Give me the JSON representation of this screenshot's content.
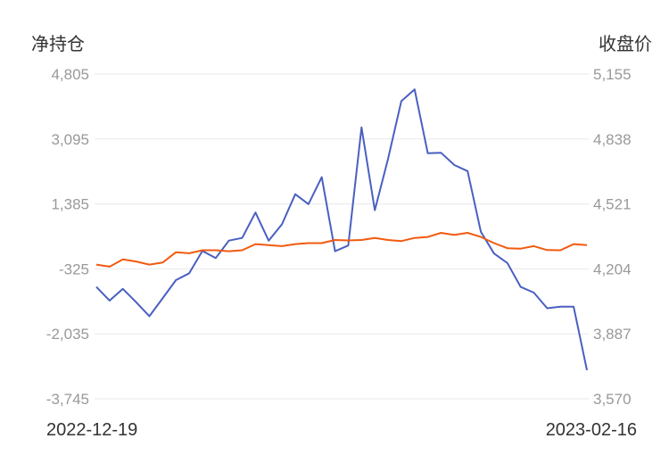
{
  "chart_data": {
    "type": "line",
    "left_axis_title": "净持仓",
    "right_axis_title": "收盘价",
    "left_ticks": [
      "4,805",
      "3,095",
      "1,385",
      "-325",
      "-2,035",
      "-3,745"
    ],
    "right_ticks": [
      "5,155",
      "4,838",
      "4,521",
      "4,204",
      "3,887",
      "3,570"
    ],
    "left_ylim": [
      -3745,
      4805
    ],
    "right_ylim": [
      3570,
      5155
    ],
    "x_start_label": "2022-12-19",
    "x_end_label": "2023-02-16",
    "grid": true,
    "series": [
      {
        "axis": "left",
        "color": "#4a5fc1",
        "values": [
          -800,
          -1160,
          -850,
          -1200,
          -1570,
          -1100,
          -620,
          -440,
          150,
          -40,
          420,
          490,
          1160,
          420,
          850,
          1640,
          1380,
          2090,
          140,
          290,
          3400,
          1220,
          2570,
          4090,
          4400,
          2720,
          2730,
          2410,
          2250,
          650,
          80,
          -170,
          -800,
          -950,
          -1360,
          -1320,
          -1320,
          -2990
        ]
      },
      {
        "axis": "right",
        "color": "#f25a0f",
        "values": [
          4225,
          4215,
          4250,
          4240,
          4225,
          4235,
          4285,
          4280,
          4295,
          4295,
          4290,
          4295,
          4325,
          4320,
          4315,
          4325,
          4330,
          4330,
          4345,
          4343,
          4345,
          4355,
          4345,
          4340,
          4355,
          4360,
          4380,
          4370,
          4380,
          4360,
          4330,
          4305,
          4303,
          4315,
          4296,
          4295,
          4325,
          4320
        ]
      }
    ]
  }
}
